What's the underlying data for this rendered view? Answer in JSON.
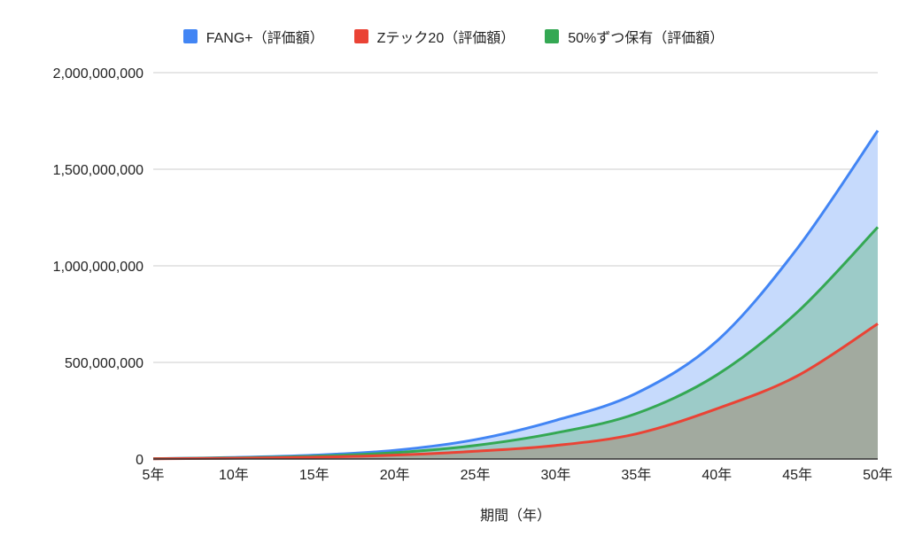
{
  "chart_data": {
    "type": "area",
    "title": "",
    "xlabel": "期間（年）",
    "ylabel": "",
    "categories": [
      "5年",
      "10年",
      "15年",
      "20年",
      "25年",
      "30年",
      "35年",
      "40年",
      "45年",
      "50年"
    ],
    "yticks": [
      "0",
      "500,000,000",
      "1,000,000,000",
      "1,500,000,000",
      "2,000,000,000"
    ],
    "ylim": [
      0,
      2000000000
    ],
    "grid": true,
    "legend_position": "top",
    "series": [
      {
        "name": "FANG+（評価額）",
        "color": "#4285f4",
        "fill": "#c6dafc",
        "values": [
          2000000,
          8000000,
          20000000,
          45000000,
          100000000,
          200000000,
          340000000,
          610000000,
          1090000000,
          1700000000
        ]
      },
      {
        "name": "Zテック20（評価額）",
        "color": "#ea4335",
        "fill": "#a2aa9f",
        "values": [
          1000000,
          4000000,
          9000000,
          20000000,
          40000000,
          70000000,
          130000000,
          260000000,
          430000000,
          700000000
        ]
      },
      {
        "name": "50%ずつ保有（評価額）",
        "color": "#34a853",
        "fill": "#9ccbc8",
        "values": [
          1500000,
          6000000,
          14500000,
          32500000,
          70000000,
          135000000,
          235000000,
          435000000,
          760000000,
          1200000000
        ]
      }
    ]
  },
  "legend": {
    "items": [
      {
        "label": "FANG+（評価額）",
        "color": "#4285f4"
      },
      {
        "label": "Zテック20（評価額）",
        "color": "#ea4335"
      },
      {
        "label": "50%ずつ保有（評価額）",
        "color": "#34a853"
      }
    ]
  },
  "axis": {
    "x_title": "期間（年）"
  }
}
